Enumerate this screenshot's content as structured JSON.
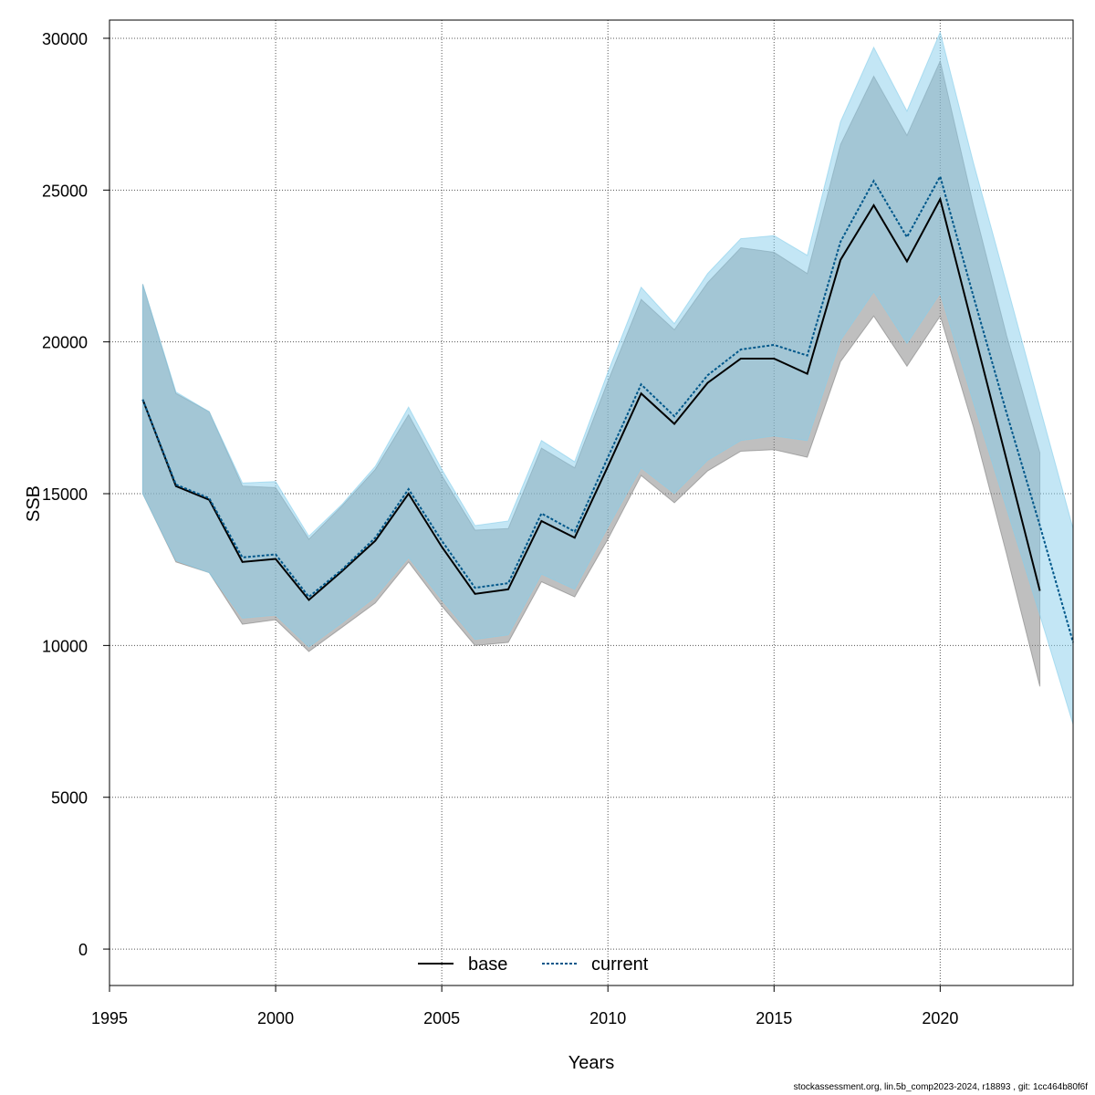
{
  "chart_data": {
    "type": "line",
    "xlabel": "Years",
    "ylabel": "SSB",
    "xlim": [
      1995,
      2024
    ],
    "ylim": [
      -1200,
      30600
    ],
    "x_ticks": [
      1995,
      2000,
      2005,
      2010,
      2015,
      2020
    ],
    "y_ticks": [
      0,
      5000,
      10000,
      15000,
      20000,
      25000,
      30000
    ],
    "grid": true,
    "legend_position": "bottom-center",
    "series": [
      {
        "name": "base",
        "color": "#000000",
        "band_color": "#808080",
        "linestyle": "solid",
        "x": [
          1996,
          1997,
          1998,
          1999,
          2000,
          2001,
          2002,
          2003,
          2004,
          2005,
          2006,
          2007,
          2008,
          2009,
          2010,
          2011,
          2012,
          2013,
          2014,
          2015,
          2016,
          2017,
          2018,
          2019,
          2020,
          2021,
          2022,
          2023
        ],
        "values": [
          18100,
          15250,
          14800,
          12750,
          12850,
          11500,
          12450,
          13450,
          15000,
          13250,
          11700,
          11850,
          14100,
          13550,
          15900,
          18300,
          17300,
          18650,
          19450,
          19450,
          18950,
          22700,
          24500,
          22650,
          24700,
          20400,
          16100,
          11800
        ],
        "lower": [
          15000,
          12750,
          12400,
          10700,
          10850,
          9800,
          10600,
          11400,
          12750,
          11300,
          10000,
          10100,
          12100,
          11600,
          13500,
          15600,
          14700,
          15750,
          16400,
          16450,
          16200,
          19350,
          20850,
          19200,
          20850,
          17200,
          13000,
          8650
        ],
        "upper": [
          21900,
          18300,
          17700,
          15250,
          15200,
          13500,
          14600,
          15800,
          17600,
          15600,
          13800,
          13850,
          16500,
          15850,
          18700,
          21400,
          20400,
          21950,
          23100,
          22950,
          22250,
          26500,
          28750,
          26800,
          29250,
          24500,
          20200,
          16350
        ]
      },
      {
        "name": "current",
        "color": "#00578a",
        "band_color": "#87ceeb",
        "linestyle": "dotted",
        "x": [
          1996,
          1997,
          1998,
          1999,
          2000,
          2001,
          2002,
          2003,
          2004,
          2005,
          2006,
          2007,
          2008,
          2009,
          2010,
          2011,
          2012,
          2013,
          2014,
          2015,
          2016,
          2017,
          2018,
          2019,
          2020,
          2021,
          2022,
          2023,
          2024
        ],
        "values": [
          18100,
          15300,
          14850,
          12900,
          13000,
          11600,
          12500,
          13550,
          15150,
          13450,
          11900,
          12050,
          14350,
          13750,
          16200,
          18600,
          17550,
          18900,
          19750,
          19900,
          19550,
          23300,
          25300,
          23450,
          25450,
          21500,
          17650,
          13950,
          10100
        ],
        "lower": [
          15000,
          12800,
          12400,
          10900,
          11000,
          9950,
          10750,
          11600,
          12900,
          11500,
          10200,
          10350,
          12350,
          11850,
          13900,
          15850,
          15000,
          16100,
          16750,
          16900,
          16750,
          20050,
          21650,
          19950,
          21600,
          18000,
          14500,
          11000,
          7400
        ],
        "upper": [
          21900,
          18350,
          17700,
          15350,
          15400,
          13600,
          14650,
          15900,
          17850,
          15800,
          13950,
          14100,
          16750,
          16050,
          19000,
          21800,
          20600,
          22250,
          23400,
          23500,
          22850,
          27250,
          29700,
          27600,
          30200,
          25900,
          21900,
          17850,
          13850
        ]
      }
    ]
  },
  "footer": "stockassessment.org, lin.5b_comp2023-2024, r18893 , git: 1cc464b80f6f"
}
